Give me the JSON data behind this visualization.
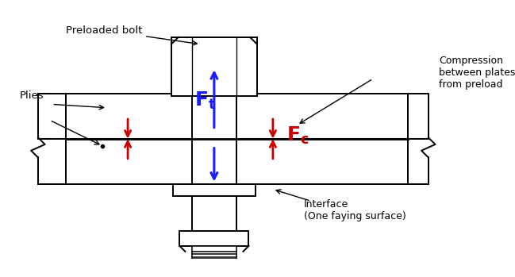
{
  "bg_color": "#ffffff",
  "lc": "#000000",
  "blue": "#1a1aff",
  "red": "#cc0000",
  "lw": 1.4,
  "fig_w": 6.49,
  "fig_h": 3.49,
  "labels": {
    "preloaded_bolt": "Preloaded bolt",
    "plies": "Plies",
    "compression": "Compression\nbetween plates\nfrom preload",
    "interface": "Interface\n(One faying surface)"
  }
}
